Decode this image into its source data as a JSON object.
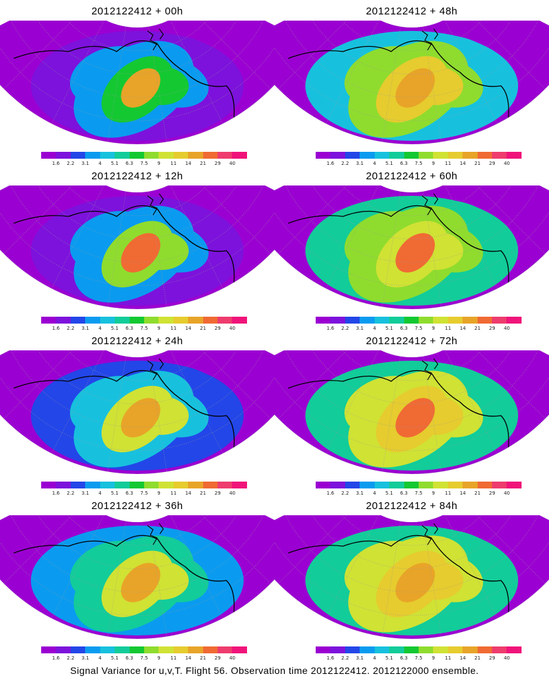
{
  "colorbar": {
    "ticks": [
      "1.6",
      "2.2",
      "3.1",
      "4",
      "5.1",
      "6.3",
      "7.5",
      "9",
      "11",
      "14",
      "21",
      "29",
      "40"
    ],
    "colors": [
      "#9b00d2",
      "#7d12dc",
      "#2346e8",
      "#0a9bf0",
      "#17c1de",
      "#12cc9a",
      "#14c832",
      "#8fdc2e",
      "#d0e234",
      "#e6cc2e",
      "#e8a428",
      "#f06a34",
      "#ee3c6e",
      "#f0147a"
    ]
  },
  "map_colors": {
    "coast": "#000000",
    "grid": "#999999"
  },
  "panels": [
    {
      "title": "2012122412 + 00h",
      "stage": 0
    },
    {
      "title": "2012122412 + 48h",
      "stage": 4
    },
    {
      "title": "2012122412 + 12h",
      "stage": 1
    },
    {
      "title": "2012122412 + 60h",
      "stage": 5
    },
    {
      "title": "2012122412 + 24h",
      "stage": 2
    },
    {
      "title": "2012122412 + 72h",
      "stage": 6
    },
    {
      "title": "2012122412 + 36h",
      "stage": 3
    },
    {
      "title": "2012122412 + 84h",
      "stage": 7
    }
  ],
  "footer": "Signal Variance for u,v,T. Flight 56. Observation time 2012122412. 2012122000 ensemble."
}
